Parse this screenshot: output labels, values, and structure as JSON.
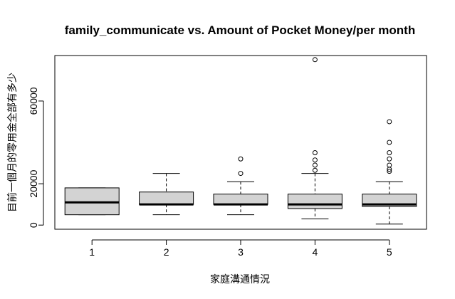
{
  "chart_data": {
    "type": "boxplot",
    "title": "family_communicate vs. Amount of Pocket Money/per month",
    "xlabel": "家庭溝通情況",
    "ylabel": "目前一個月的零用金全部有多少",
    "categories": [
      "1",
      "2",
      "3",
      "4",
      "5"
    ],
    "y_ticks": [
      0,
      20000,
      60000
    ],
    "ylim": [
      -2000,
      82000
    ],
    "box_fill": "#d3d3d3",
    "boxes": [
      {
        "category": "1",
        "lower_whisker": 5000,
        "q1": 5000,
        "median": 11000,
        "q3": 18000,
        "upper_whisker": 18000,
        "outliers": []
      },
      {
        "category": "2",
        "lower_whisker": 5000,
        "q1": 10000,
        "median": 10000,
        "q3": 16000,
        "upper_whisker": 25000,
        "outliers": []
      },
      {
        "category": "3",
        "lower_whisker": 5000,
        "q1": 10000,
        "median": 10000,
        "q3": 15000,
        "upper_whisker": 21000,
        "outliers": [
          25000,
          32000
        ]
      },
      {
        "category": "4",
        "lower_whisker": 3000,
        "q1": 8000,
        "median": 10000,
        "q3": 15000,
        "upper_whisker": 25000,
        "outliers": [
          26500,
          29000,
          31500,
          35000,
          80000
        ]
      },
      {
        "category": "5",
        "lower_whisker": 500,
        "q1": 9000,
        "median": 10000,
        "q3": 15000,
        "upper_whisker": 21000,
        "outliers": [
          26000,
          27000,
          29000,
          32000,
          35000,
          40000,
          50000
        ]
      }
    ]
  }
}
